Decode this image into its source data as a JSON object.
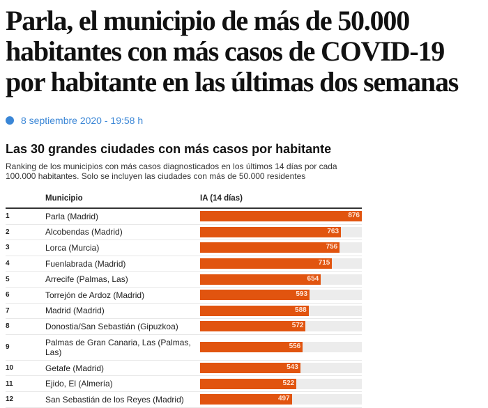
{
  "article": {
    "headline": "Parla, el municipio de más de 50.000 habitantes con más casos de COVID-19 por habitante en las últimas dos semanas",
    "date": "8 septiembre 2020 - 19:58 h",
    "accent_color": "#3a86d6"
  },
  "chart_data": {
    "type": "bar",
    "orientation": "horizontal",
    "title": "Las 30 grandes ciudades con más casos por habitante",
    "subtitle": "Ranking de los municipios con más casos diagnosticados en los últimos 14 días por cada 100.000 habitantes. Solo se incluyen las ciudades con más de 50.000 residentes",
    "columns": {
      "rank": "",
      "name": "Municipio",
      "value": "IA (14 días)"
    },
    "bar_color": "#e1540f",
    "track_color": "#ececec",
    "xlim": [
      0,
      876
    ],
    "rows": [
      {
        "rank": "1",
        "name": "Parla (Madrid)",
        "value": 876
      },
      {
        "rank": "2",
        "name": "Alcobendas (Madrid)",
        "value": 763
      },
      {
        "rank": "3",
        "name": "Lorca (Murcia)",
        "value": 756
      },
      {
        "rank": "4",
        "name": "Fuenlabrada (Madrid)",
        "value": 715
      },
      {
        "rank": "5",
        "name": "Arrecife (Palmas, Las)",
        "value": 654
      },
      {
        "rank": "6",
        "name": "Torrejón de Ardoz (Madrid)",
        "value": 593
      },
      {
        "rank": "7",
        "name": "Madrid (Madrid)",
        "value": 588
      },
      {
        "rank": "8",
        "name": "Donostia/San Sebastián (Gipuzkoa)",
        "value": 572
      },
      {
        "rank": "9",
        "name": "Palmas de Gran Canaria, Las (Palmas, Las)",
        "value": 556
      },
      {
        "rank": "10",
        "name": "Getafe (Madrid)",
        "value": 543
      },
      {
        "rank": "11",
        "name": "Ejido, El (Almería)",
        "value": 522
      },
      {
        "rank": "12",
        "name": "San Sebastián de los Reyes (Madrid)",
        "value": 497
      }
    ]
  }
}
